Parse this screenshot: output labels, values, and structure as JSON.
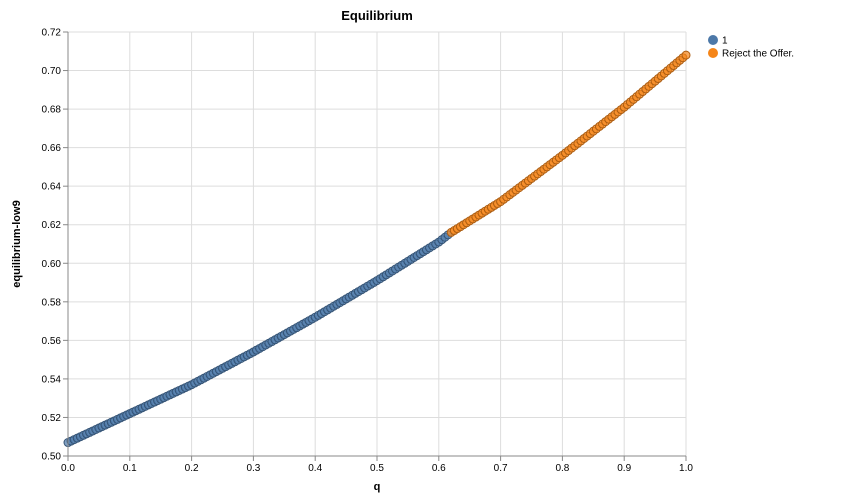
{
  "chart_data": {
    "type": "scatter",
    "title": "Equilibrium",
    "xlabel": "q",
    "ylabel": "equilibrium-low9",
    "xlim": [
      0.0,
      1.0
    ],
    "ylim": [
      0.5,
      0.72
    ],
    "x_ticks": [
      "0.0",
      "0.1",
      "0.2",
      "0.3",
      "0.4",
      "0.5",
      "0.6",
      "0.7",
      "0.8",
      "0.9",
      "1.0"
    ],
    "y_ticks": [
      "0.50",
      "0.52",
      "0.54",
      "0.56",
      "0.58",
      "0.60",
      "0.62",
      "0.64",
      "0.66",
      "0.68",
      "0.70",
      "0.72"
    ],
    "grid": true,
    "legend_position": "top-right",
    "curve_points": [
      [
        0.0,
        0.507
      ],
      [
        0.1,
        0.522
      ],
      [
        0.2,
        0.537
      ],
      [
        0.3,
        0.554
      ],
      [
        0.4,
        0.572
      ],
      [
        0.5,
        0.591
      ],
      [
        0.6,
        0.611
      ],
      [
        0.62,
        0.616
      ],
      [
        0.7,
        0.632
      ],
      [
        0.8,
        0.656
      ],
      [
        0.9,
        0.681
      ],
      [
        1.0,
        0.708
      ]
    ],
    "x_step": 0.005,
    "series": [
      {
        "name": "1",
        "color": "#4c78a8",
        "x_range": [
          0.0,
          0.62
        ]
      },
      {
        "name": "Reject the Offer.",
        "color": "#f58518",
        "x_range": [
          0.62,
          1.0
        ]
      }
    ]
  }
}
